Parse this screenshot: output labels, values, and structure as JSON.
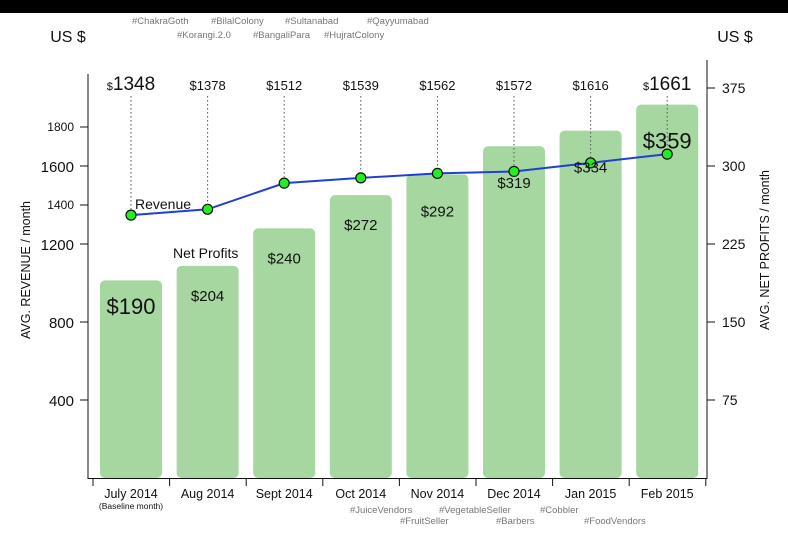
{
  "chart_data": {
    "type": "bar",
    "categories": [
      "July 2014",
      "Aug 2014",
      "Sept 2014",
      "Oct 2014",
      "Nov 2014",
      "Dec 2014",
      "Jan 2015",
      "Feb 2015"
    ],
    "baseline_note": "(Baseline month)",
    "series": [
      {
        "name": "Net Profits",
        "type": "bar",
        "axis": "right",
        "values": [
          190,
          204,
          240,
          272,
          292,
          319,
          334,
          359
        ],
        "labels": [
          "$190",
          "$204",
          "$240",
          "$272",
          "$292",
          "$319",
          "$334",
          "$359"
        ]
      },
      {
        "name": "Revenue",
        "type": "line",
        "axis": "left",
        "values": [
          1348,
          1378,
          1512,
          1539,
          1562,
          1572,
          1616,
          1661
        ],
        "labels": [
          "1348",
          "1378",
          "1512",
          "1539",
          "1562",
          "1572",
          "1616",
          "1661"
        ]
      }
    ],
    "ylabel_left": "AVG. REVENUE / month",
    "ylabel_right": "AVG. NET PROFITS / month",
    "unit_left": "US $",
    "unit_right": "US $",
    "y_ticks_left": [
      400,
      800,
      1200,
      1400,
      1600,
      1800
    ],
    "y_ticks_right": [
      75,
      150,
      225,
      300,
      375
    ],
    "ylim_left": [
      0,
      2000
    ],
    "ylim_right": [
      0,
      385
    ],
    "top_tags": [
      "#ChakraGoth",
      "#BilalColony",
      "#Sultanabad",
      "#Qayyumabad",
      "#Korangi.2.0",
      "#BangaliPara",
      "#HujratColony"
    ],
    "bottom_tags": [
      "#JuiceVendors",
      "#VegetableSeller",
      "#Cobbler",
      "#FruitSeller",
      "#Barbers",
      "#FoodVendors"
    ],
    "colors": {
      "background": "#ffffff",
      "bar": "#a6d7a0",
      "line": "#1f3fd6",
      "marker": "#22ee22",
      "tag": "#777777",
      "text": "#111111"
    }
  }
}
